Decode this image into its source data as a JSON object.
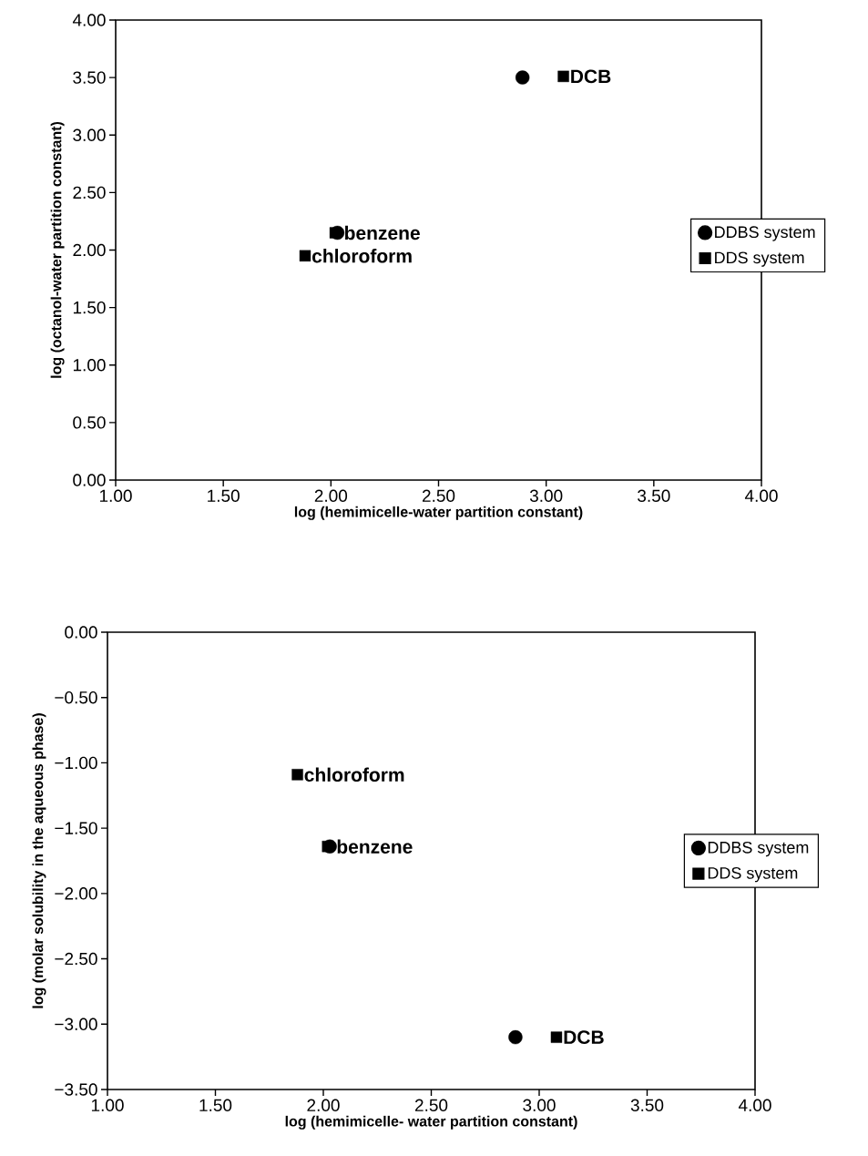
{
  "chart_data": [
    {
      "type": "scatter",
      "xlabel": "log (hemimicelle-water partition constant)",
      "ylabel": "log (octanol-water partition constant)",
      "xlim": [
        1,
        4
      ],
      "ylim": [
        0,
        4
      ],
      "xticks": [
        {
          "value": 1,
          "label": "1.00"
        },
        {
          "value": 1.5,
          "label": "1.50"
        },
        {
          "value": 2,
          "label": "2.00"
        },
        {
          "value": 2.5,
          "label": "2.50"
        },
        {
          "value": 3,
          "label": "3.00"
        },
        {
          "value": 3.5,
          "label": "3.50"
        },
        {
          "value": 4,
          "label": "4.00"
        }
      ],
      "yticks": [
        {
          "value": 0,
          "label": "0.00"
        },
        {
          "value": 0.5,
          "label": "0.50"
        },
        {
          "value": 1,
          "label": "1.00"
        },
        {
          "value": 1.5,
          "label": "1.50"
        },
        {
          "value": 2,
          "label": "2.00"
        },
        {
          "value": 2.5,
          "label": "2.50"
        },
        {
          "value": 3,
          "label": "3.00"
        },
        {
          "value": 3.5,
          "label": "3.50"
        },
        {
          "value": 4,
          "label": "4.00"
        }
      ],
      "legend": "right",
      "grid": false,
      "series": [
        {
          "name": "DDBS system",
          "color": "#000000",
          "marker": "circle",
          "x": [
            2.89,
            2.03
          ],
          "values": [
            3.5,
            2.15
          ]
        },
        {
          "name": "DDS system",
          "color": "#000000",
          "marker": "square",
          "x": [
            3.08,
            2.02,
            1.88
          ],
          "values": [
            3.51,
            2.15,
            1.95
          ]
        }
      ],
      "annotations": [
        {
          "text": "DCB",
          "x": 3.08,
          "y": 3.51
        },
        {
          "text": "benzene",
          "x": 2.03,
          "y": 2.15
        },
        {
          "text": "chloroform",
          "x": 1.88,
          "y": 1.95
        }
      ]
    },
    {
      "type": "scatter",
      "xlabel": "log (hemimicelle- water partition constant)",
      "ylabel": "log (molar solubility in the aqueous phase)",
      "xlim": [
        1,
        4
      ],
      "ylim": [
        -3.5,
        0
      ],
      "xticks": [
        {
          "value": 1,
          "label": "1.00"
        },
        {
          "value": 1.5,
          "label": "1.50"
        },
        {
          "value": 2,
          "label": "2.00"
        },
        {
          "value": 2.5,
          "label": "2.50"
        },
        {
          "value": 3,
          "label": "3.00"
        },
        {
          "value": 3.5,
          "label": "3.50"
        },
        {
          "value": 4,
          "label": "4.00"
        }
      ],
      "yticks": [
        {
          "value": -3.5,
          "label": "−3.50"
        },
        {
          "value": -3,
          "label": "−3.00"
        },
        {
          "value": -2.5,
          "label": "−2.50"
        },
        {
          "value": -2,
          "label": "−2.00"
        },
        {
          "value": -1.5,
          "label": "−1.50"
        },
        {
          "value": -1,
          "label": "−1.00"
        },
        {
          "value": -0.5,
          "label": "−0.50"
        },
        {
          "value": 0,
          "label": "0.00"
        }
      ],
      "legend": "right",
      "grid": false,
      "series": [
        {
          "name": "DDBS system",
          "color": "#000000",
          "marker": "circle",
          "x": [
            2.89,
            2.03
          ],
          "values": [
            -3.1,
            -1.64
          ]
        },
        {
          "name": "DDS system",
          "color": "#000000",
          "marker": "square",
          "x": [
            3.08,
            2.02,
            1.88
          ],
          "values": [
            -3.1,
            -1.64,
            -1.09
          ]
        }
      ],
      "annotations": [
        {
          "text": "DCB",
          "x": 3.08,
          "y": -3.1
        },
        {
          "text": "benzene",
          "x": 2.03,
          "y": -1.64
        },
        {
          "text": "chloroform",
          "x": 1.88,
          "y": -1.09
        }
      ]
    }
  ]
}
